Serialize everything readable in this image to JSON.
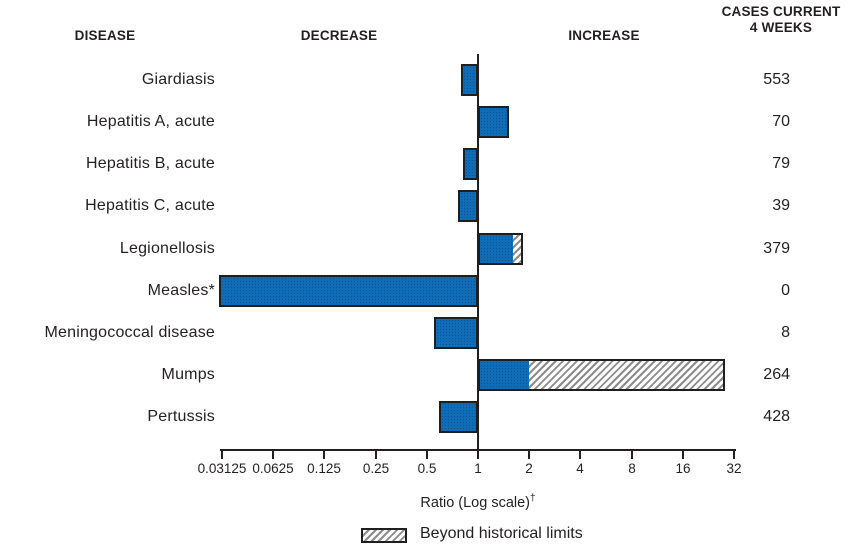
{
  "header": {
    "disease_col": "DISEASE",
    "decrease_col": "DECREASE",
    "increase_col": "INCREASE",
    "cases_col_line1": "CASES CURRENT",
    "cases_col_line2": "4 WEEKS"
  },
  "axis": {
    "label": "Ratio (Log scale)",
    "label_superscript": "†",
    "ticks": [
      "0.03125",
      "0.0625",
      "0.125",
      "0.25",
      "0.5",
      "1",
      "2",
      "4",
      "8",
      "16",
      "32"
    ]
  },
  "legend": {
    "beyond_label": "Beyond historical limits"
  },
  "colors": {
    "bar_fill": "#0f6cb6",
    "bar_border": "#1f1f1f",
    "hatch_line": "#8c8c8c",
    "hatch_bg": "#ffffff",
    "text": "#231f20",
    "axis_line": "#231f20"
  },
  "chart_data": {
    "type": "bar",
    "orientation": "horizontal",
    "scale": "log2",
    "baseline": 1,
    "xlabel": "Ratio (Log scale)†",
    "x_ticks": [
      0.03125,
      0.0625,
      0.125,
      0.25,
      0.5,
      1,
      2,
      4,
      8,
      16,
      32
    ],
    "legend_note": "Hatched bar segments indicate ratio beyond historical limits",
    "rows": [
      {
        "label": "Giardiasis",
        "cases": 553,
        "ratio": 0.79,
        "beyond_historical_limits": false,
        "historical_limit_ratio": null
      },
      {
        "label": "Hepatitis A, acute",
        "cases": 70,
        "ratio": 1.53,
        "beyond_historical_limits": false,
        "historical_limit_ratio": null
      },
      {
        "label": "Hepatitis B, acute",
        "cases": 79,
        "ratio": 0.82,
        "beyond_historical_limits": false,
        "historical_limit_ratio": null
      },
      {
        "label": "Hepatitis C, acute",
        "cases": 39,
        "ratio": 0.76,
        "beyond_historical_limits": false,
        "historical_limit_ratio": null
      },
      {
        "label": "Legionellosis",
        "cases": 379,
        "ratio": 1.85,
        "beyond_historical_limits": true,
        "historical_limit_ratio": 1.6
      },
      {
        "label": "Measles*",
        "cases": 0,
        "ratio": 0.03,
        "beyond_historical_limits": false,
        "historical_limit_ratio": null
      },
      {
        "label": "Meningococcal disease",
        "cases": 8,
        "ratio": 0.55,
        "beyond_historical_limits": false,
        "historical_limit_ratio": null
      },
      {
        "label": "Mumps",
        "cases": 264,
        "ratio": 28.2,
        "beyond_historical_limits": true,
        "historical_limit_ratio": 2.0
      },
      {
        "label": "Pertussis",
        "cases": 428,
        "ratio": 0.59,
        "beyond_historical_limits": false,
        "historical_limit_ratio": null
      }
    ]
  }
}
